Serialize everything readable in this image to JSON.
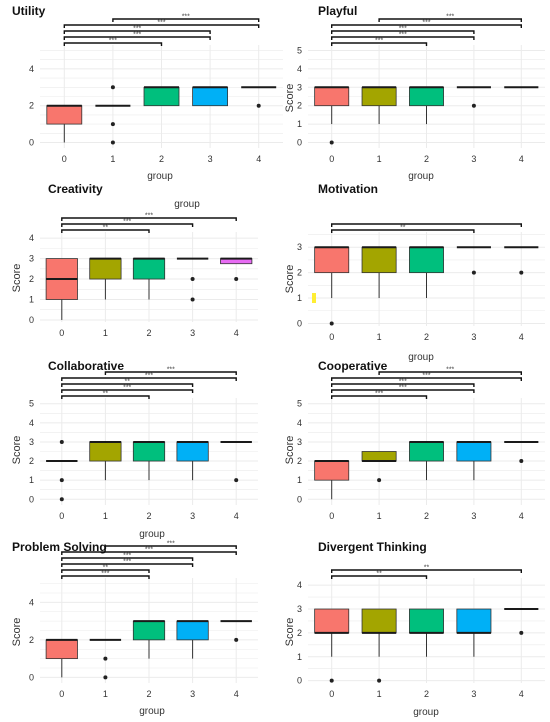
{
  "colors": {
    "groups": [
      "#f8766d",
      "#a3a500",
      "#00bf7d",
      "#00b0f6",
      "#e76bf3"
    ],
    "grid": "#ebebeb",
    "median": "#1a1a1a",
    "text": "#333333",
    "stray_mark": "#ffee33"
  },
  "chart_data": [
    {
      "type": "box",
      "title": "Utility",
      "xlabel": "group",
      "ylabel": "",
      "categories": [
        "0",
        "1",
        "2",
        "3",
        "4"
      ],
      "yticks": [
        0,
        2,
        4
      ],
      "ylim": [
        -0.3,
        5.3
      ],
      "boxes": [
        {
          "q1": 1,
          "median": 2,
          "q3": 2,
          "lo": 0,
          "hi": 2,
          "outliers": []
        },
        {
          "q1": 2,
          "median": 2,
          "q3": 2,
          "lo": 2,
          "hi": 2,
          "outliers": [
            0,
            1,
            3
          ]
        },
        {
          "q1": 2,
          "median": 3,
          "q3": 3,
          "lo": 2,
          "hi": 3,
          "outliers": []
        },
        {
          "q1": 2,
          "median": 3,
          "q3": 3,
          "lo": 2,
          "hi": 3,
          "outliers": []
        },
        {
          "q1": 3,
          "median": 3,
          "q3": 3,
          "lo": 3,
          "hi": 3,
          "outliers": [
            2
          ]
        }
      ],
      "brackets": [
        {
          "from": 0,
          "to": 2,
          "label": "***"
        },
        {
          "from": 0,
          "to": 3,
          "label": "***"
        },
        {
          "from": 0,
          "to": 3,
          "label": "***"
        },
        {
          "from": 0,
          "to": 4,
          "label": "***"
        },
        {
          "from": 1,
          "to": 4,
          "label": "***"
        }
      ]
    },
    {
      "type": "box",
      "title": "Playful",
      "xlabel": "group",
      "ylabel": "Score",
      "categories": [
        "0",
        "1",
        "2",
        "3",
        "4"
      ],
      "yticks": [
        0,
        1,
        2,
        3,
        4,
        5
      ],
      "ylim": [
        -0.3,
        5.3
      ],
      "boxes": [
        {
          "q1": 2,
          "median": 3,
          "q3": 3,
          "lo": 1,
          "hi": 3,
          "outliers": [
            0
          ]
        },
        {
          "q1": 2,
          "median": 3,
          "q3": 3,
          "lo": 1,
          "hi": 3,
          "outliers": []
        },
        {
          "q1": 2,
          "median": 3,
          "q3": 3,
          "lo": 1,
          "hi": 3,
          "outliers": []
        },
        {
          "q1": 3,
          "median": 3,
          "q3": 3,
          "lo": 3,
          "hi": 3,
          "outliers": [
            2
          ]
        },
        {
          "q1": 3,
          "median": 3,
          "q3": 3,
          "lo": 3,
          "hi": 3,
          "outliers": []
        }
      ],
      "brackets": [
        {
          "from": 0,
          "to": 2,
          "label": "***"
        },
        {
          "from": 0,
          "to": 3,
          "label": "***"
        },
        {
          "from": 0,
          "to": 3,
          "label": "***"
        },
        {
          "from": 0,
          "to": 4,
          "label": "***"
        },
        {
          "from": 1,
          "to": 4,
          "label": "***"
        }
      ]
    },
    {
      "type": "box",
      "title": "Creativity",
      "xlabel": "group",
      "ylabel": "Score",
      "categories": [
        "0",
        "1",
        "2",
        "3",
        "4"
      ],
      "yticks": [
        0,
        1,
        2,
        3,
        4
      ],
      "ylim": [
        -0.1,
        4.3
      ],
      "boxes": [
        {
          "q1": 1,
          "median": 2,
          "q3": 3,
          "lo": 0,
          "hi": 3,
          "outliers": []
        },
        {
          "q1": 2,
          "median": 3,
          "q3": 3,
          "lo": 1,
          "hi": 3,
          "outliers": []
        },
        {
          "q1": 2,
          "median": 3,
          "q3": 3,
          "lo": 1,
          "hi": 3,
          "outliers": []
        },
        {
          "q1": 3,
          "median": 3,
          "q3": 3,
          "lo": 3,
          "hi": 3,
          "outliers": [
            1,
            2
          ]
        },
        {
          "q1": 2.75,
          "median": 3,
          "q3": 3,
          "lo": 2.75,
          "hi": 3,
          "outliers": [
            2
          ]
        }
      ],
      "brackets": [
        {
          "from": 0,
          "to": 2,
          "label": "**"
        },
        {
          "from": 0,
          "to": 3,
          "label": "***"
        },
        {
          "from": 0,
          "to": 4,
          "label": "***"
        }
      ]
    },
    {
      "type": "box",
      "title": "Motivation",
      "xlabel": "group",
      "ylabel": "Score",
      "categories": [
        "0",
        "1",
        "2",
        "3",
        "4"
      ],
      "yticks": [
        0,
        1,
        2,
        3
      ],
      "ylim": [
        -0.1,
        3.6
      ],
      "boxes": [
        {
          "q1": 2,
          "median": 3,
          "q3": 3,
          "lo": 1,
          "hi": 3,
          "outliers": [
            0
          ]
        },
        {
          "q1": 2,
          "median": 3,
          "q3": 3,
          "lo": 1,
          "hi": 3,
          "outliers": []
        },
        {
          "q1": 2,
          "median": 3,
          "q3": 3,
          "lo": 1,
          "hi": 3,
          "outliers": []
        },
        {
          "q1": 3,
          "median": 3,
          "q3": 3,
          "lo": 3,
          "hi": 3,
          "outliers": [
            2
          ]
        },
        {
          "q1": 3,
          "median": 3,
          "q3": 3,
          "lo": 3,
          "hi": 3,
          "outliers": [
            2
          ]
        }
      ],
      "brackets": [
        {
          "from": 0,
          "to": 3,
          "label": "**"
        },
        {
          "from": 0,
          "to": 4,
          "label": ""
        }
      ]
    },
    {
      "type": "box",
      "title": "Collaborative",
      "xlabel": "group",
      "ylabel": "Score",
      "categories": [
        "0",
        "1",
        "2",
        "3",
        "4"
      ],
      "yticks": [
        0,
        1,
        2,
        3,
        4,
        5
      ],
      "ylim": [
        -0.3,
        5.3
      ],
      "boxes": [
        {
          "q1": 2,
          "median": 2,
          "q3": 2,
          "lo": 2,
          "hi": 2,
          "outliers": [
            0,
            1,
            3
          ]
        },
        {
          "q1": 2,
          "median": 3,
          "q3": 3,
          "lo": 1,
          "hi": 3,
          "outliers": []
        },
        {
          "q1": 2,
          "median": 3,
          "q3": 3,
          "lo": 1,
          "hi": 3,
          "outliers": []
        },
        {
          "q1": 2,
          "median": 3,
          "q3": 3,
          "lo": 1,
          "hi": 3,
          "outliers": []
        },
        {
          "q1": 3,
          "median": 3,
          "q3": 3,
          "lo": 3,
          "hi": 3,
          "outliers": [
            1
          ]
        }
      ],
      "brackets": [
        {
          "from": 0,
          "to": 2,
          "label": "**"
        },
        {
          "from": 0,
          "to": 3,
          "label": "***"
        },
        {
          "from": 0,
          "to": 3,
          "label": "**"
        },
        {
          "from": 0,
          "to": 4,
          "label": "***"
        },
        {
          "from": 1,
          "to": 4,
          "label": "***"
        }
      ]
    },
    {
      "type": "box",
      "title": "Cooperative",
      "xlabel": "",
      "ylabel": "Score",
      "categories": [
        "0",
        "1",
        "2",
        "3",
        "4"
      ],
      "yticks": [
        0,
        1,
        2,
        3,
        4,
        5
      ],
      "ylim": [
        -0.3,
        5.3
      ],
      "boxes": [
        {
          "q1": 1,
          "median": 2,
          "q3": 2,
          "lo": 0,
          "hi": 2,
          "outliers": []
        },
        {
          "q1": 2,
          "median": 2,
          "q3": 2.5,
          "lo": 2,
          "hi": 2.5,
          "outliers": [
            1
          ]
        },
        {
          "q1": 2,
          "median": 3,
          "q3": 3,
          "lo": 1,
          "hi": 3,
          "outliers": []
        },
        {
          "q1": 2,
          "median": 3,
          "q3": 3,
          "lo": 1,
          "hi": 3,
          "outliers": []
        },
        {
          "q1": 3,
          "median": 3,
          "q3": 3,
          "lo": 3,
          "hi": 3,
          "outliers": [
            2
          ]
        }
      ],
      "brackets": [
        {
          "from": 0,
          "to": 2,
          "label": "***"
        },
        {
          "from": 0,
          "to": 3,
          "label": "***"
        },
        {
          "from": 0,
          "to": 3,
          "label": "***"
        },
        {
          "from": 0,
          "to": 4,
          "label": "***"
        },
        {
          "from": 1,
          "to": 4,
          "label": "***"
        }
      ]
    },
    {
      "type": "box",
      "title": "Problem Solving",
      "xlabel": "group",
      "ylabel": "Score",
      "categories": [
        "0",
        "1",
        "2",
        "3",
        "4"
      ],
      "yticks": [
        0,
        2,
        4
      ],
      "ylim": [
        -0.3,
        5.3
      ],
      "boxes": [
        {
          "q1": 1,
          "median": 2,
          "q3": 2,
          "lo": 0,
          "hi": 2,
          "outliers": []
        },
        {
          "q1": 2,
          "median": 2,
          "q3": 2,
          "lo": 2,
          "hi": 2,
          "outliers": [
            0,
            1
          ]
        },
        {
          "q1": 2,
          "median": 3,
          "q3": 3,
          "lo": 1,
          "hi": 3,
          "outliers": []
        },
        {
          "q1": 2,
          "median": 3,
          "q3": 3,
          "lo": 1,
          "hi": 3,
          "outliers": []
        },
        {
          "q1": 3,
          "median": 3,
          "q3": 3,
          "lo": 3,
          "hi": 3,
          "outliers": [
            2
          ]
        }
      ],
      "brackets": [
        {
          "from": 0,
          "to": 2,
          "label": "***"
        },
        {
          "from": 0,
          "to": 2,
          "label": "**"
        },
        {
          "from": 0,
          "to": 3,
          "label": "***"
        },
        {
          "from": 0,
          "to": 3,
          "label": "***"
        },
        {
          "from": 0,
          "to": 4,
          "label": "***"
        },
        {
          "from": 1,
          "to": 4,
          "label": "***"
        }
      ]
    },
    {
      "type": "box",
      "title": "Divergent Thinking",
      "xlabel": "group",
      "ylabel": "Score",
      "categories": [
        "0",
        "1",
        "2",
        "3",
        "4"
      ],
      "yticks": [
        0,
        1,
        2,
        3,
        4
      ],
      "ylim": [
        -0.1,
        4.3
      ],
      "boxes": [
        {
          "q1": 2,
          "median": 2,
          "q3": 3,
          "lo": 1,
          "hi": 3,
          "outliers": [
            0
          ]
        },
        {
          "q1": 2,
          "median": 2,
          "q3": 3,
          "lo": 1,
          "hi": 3,
          "outliers": [
            0
          ]
        },
        {
          "q1": 2,
          "median": 2,
          "q3": 3,
          "lo": 1,
          "hi": 3,
          "outliers": []
        },
        {
          "q1": 2,
          "median": 2,
          "q3": 3,
          "lo": 1,
          "hi": 3,
          "outliers": []
        },
        {
          "q1": 3,
          "median": 3,
          "q3": 3,
          "lo": 3,
          "hi": 3,
          "outliers": [
            2
          ]
        }
      ],
      "brackets": [
        {
          "from": 0,
          "to": 2,
          "label": "**"
        },
        {
          "from": 0,
          "to": 4,
          "label": "**"
        }
      ]
    }
  ]
}
